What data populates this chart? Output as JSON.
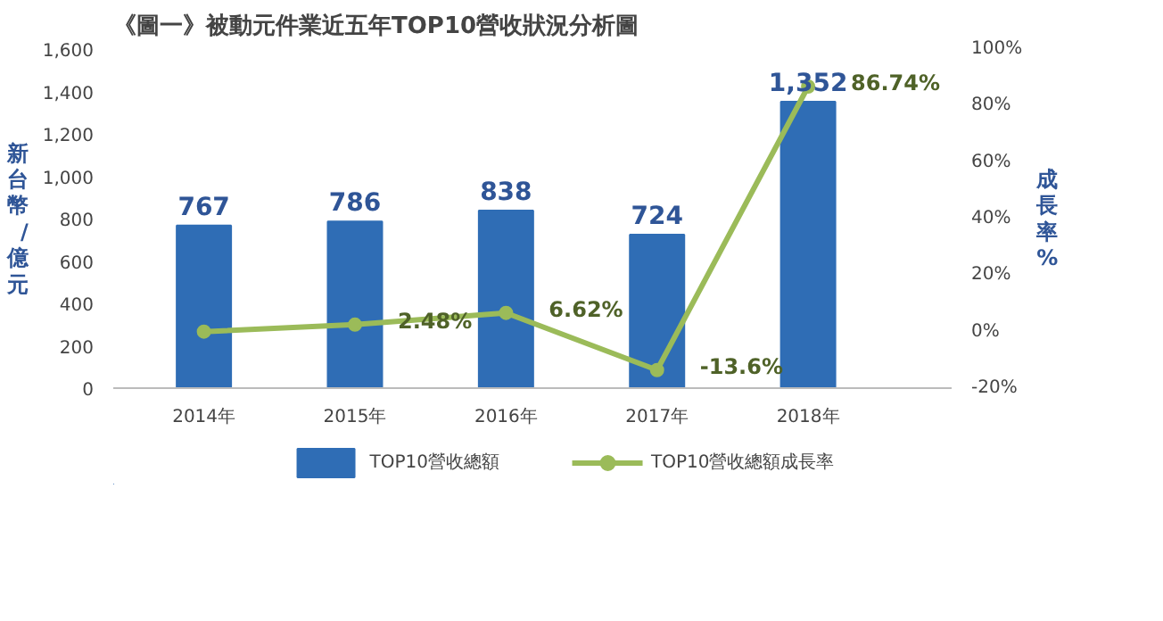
{
  "chart_data": {
    "type": "bar",
    "title": "《圖一》被動元件業近五年TOP10營收狀況分析圖",
    "ylabel": "新台幣/億元",
    "y2label": "成長率%",
    "categories": [
      "2014年",
      "2015年",
      "2016年",
      "2017年",
      "2018年"
    ],
    "series": [
      {
        "name": "TOP10營收總額",
        "color": "#2f6db5",
        "values": [
          767,
          786,
          838,
          724,
          1352
        ],
        "value_labels": [
          "767",
          "786",
          "838",
          "724",
          "1,352"
        ]
      },
      {
        "name": "TOP10營收總額成長率",
        "type": "line",
        "axis": "y2",
        "color": "#9bbb59",
        "values": [
          0,
          2.48,
          6.62,
          -13.6,
          86.74
        ],
        "value_labels": [
          null,
          "2.48%",
          "6.62%",
          "-13.6%",
          "86.74%"
        ]
      }
    ],
    "ylim": [
      0,
      1600
    ],
    "yticks": [
      0,
      {
        "value": 200,
        "label": "200"
      },
      {
        "value": 400,
        "label": "400"
      },
      {
        "value": 600,
        "label": "600"
      },
      {
        "value": 800,
        "label": "800"
      },
      {
        "value": 1000,
        "label": "1,000"
      },
      {
        "value": 1200,
        "label": "1,200"
      },
      {
        "value": 1400,
        "label": "1,400"
      },
      {
        "value": 1600,
        "label": "1,600"
      }
    ],
    "y2lim": [
      -20,
      100
    ],
    "y2ticks": [
      {
        "value": -20,
        "label": "-20%"
      },
      {
        "value": 0,
        "label": "0%"
      },
      {
        "value": 20,
        "label": "20%"
      },
      {
        "value": 40,
        "label": "40%"
      },
      {
        "value": 60,
        "label": "60%"
      },
      {
        "value": 80,
        "label": "80%"
      },
      {
        "value": 100,
        "label": "100%"
      }
    ],
    "legend": "bottom",
    "marker": "circle",
    "grid": false
  }
}
